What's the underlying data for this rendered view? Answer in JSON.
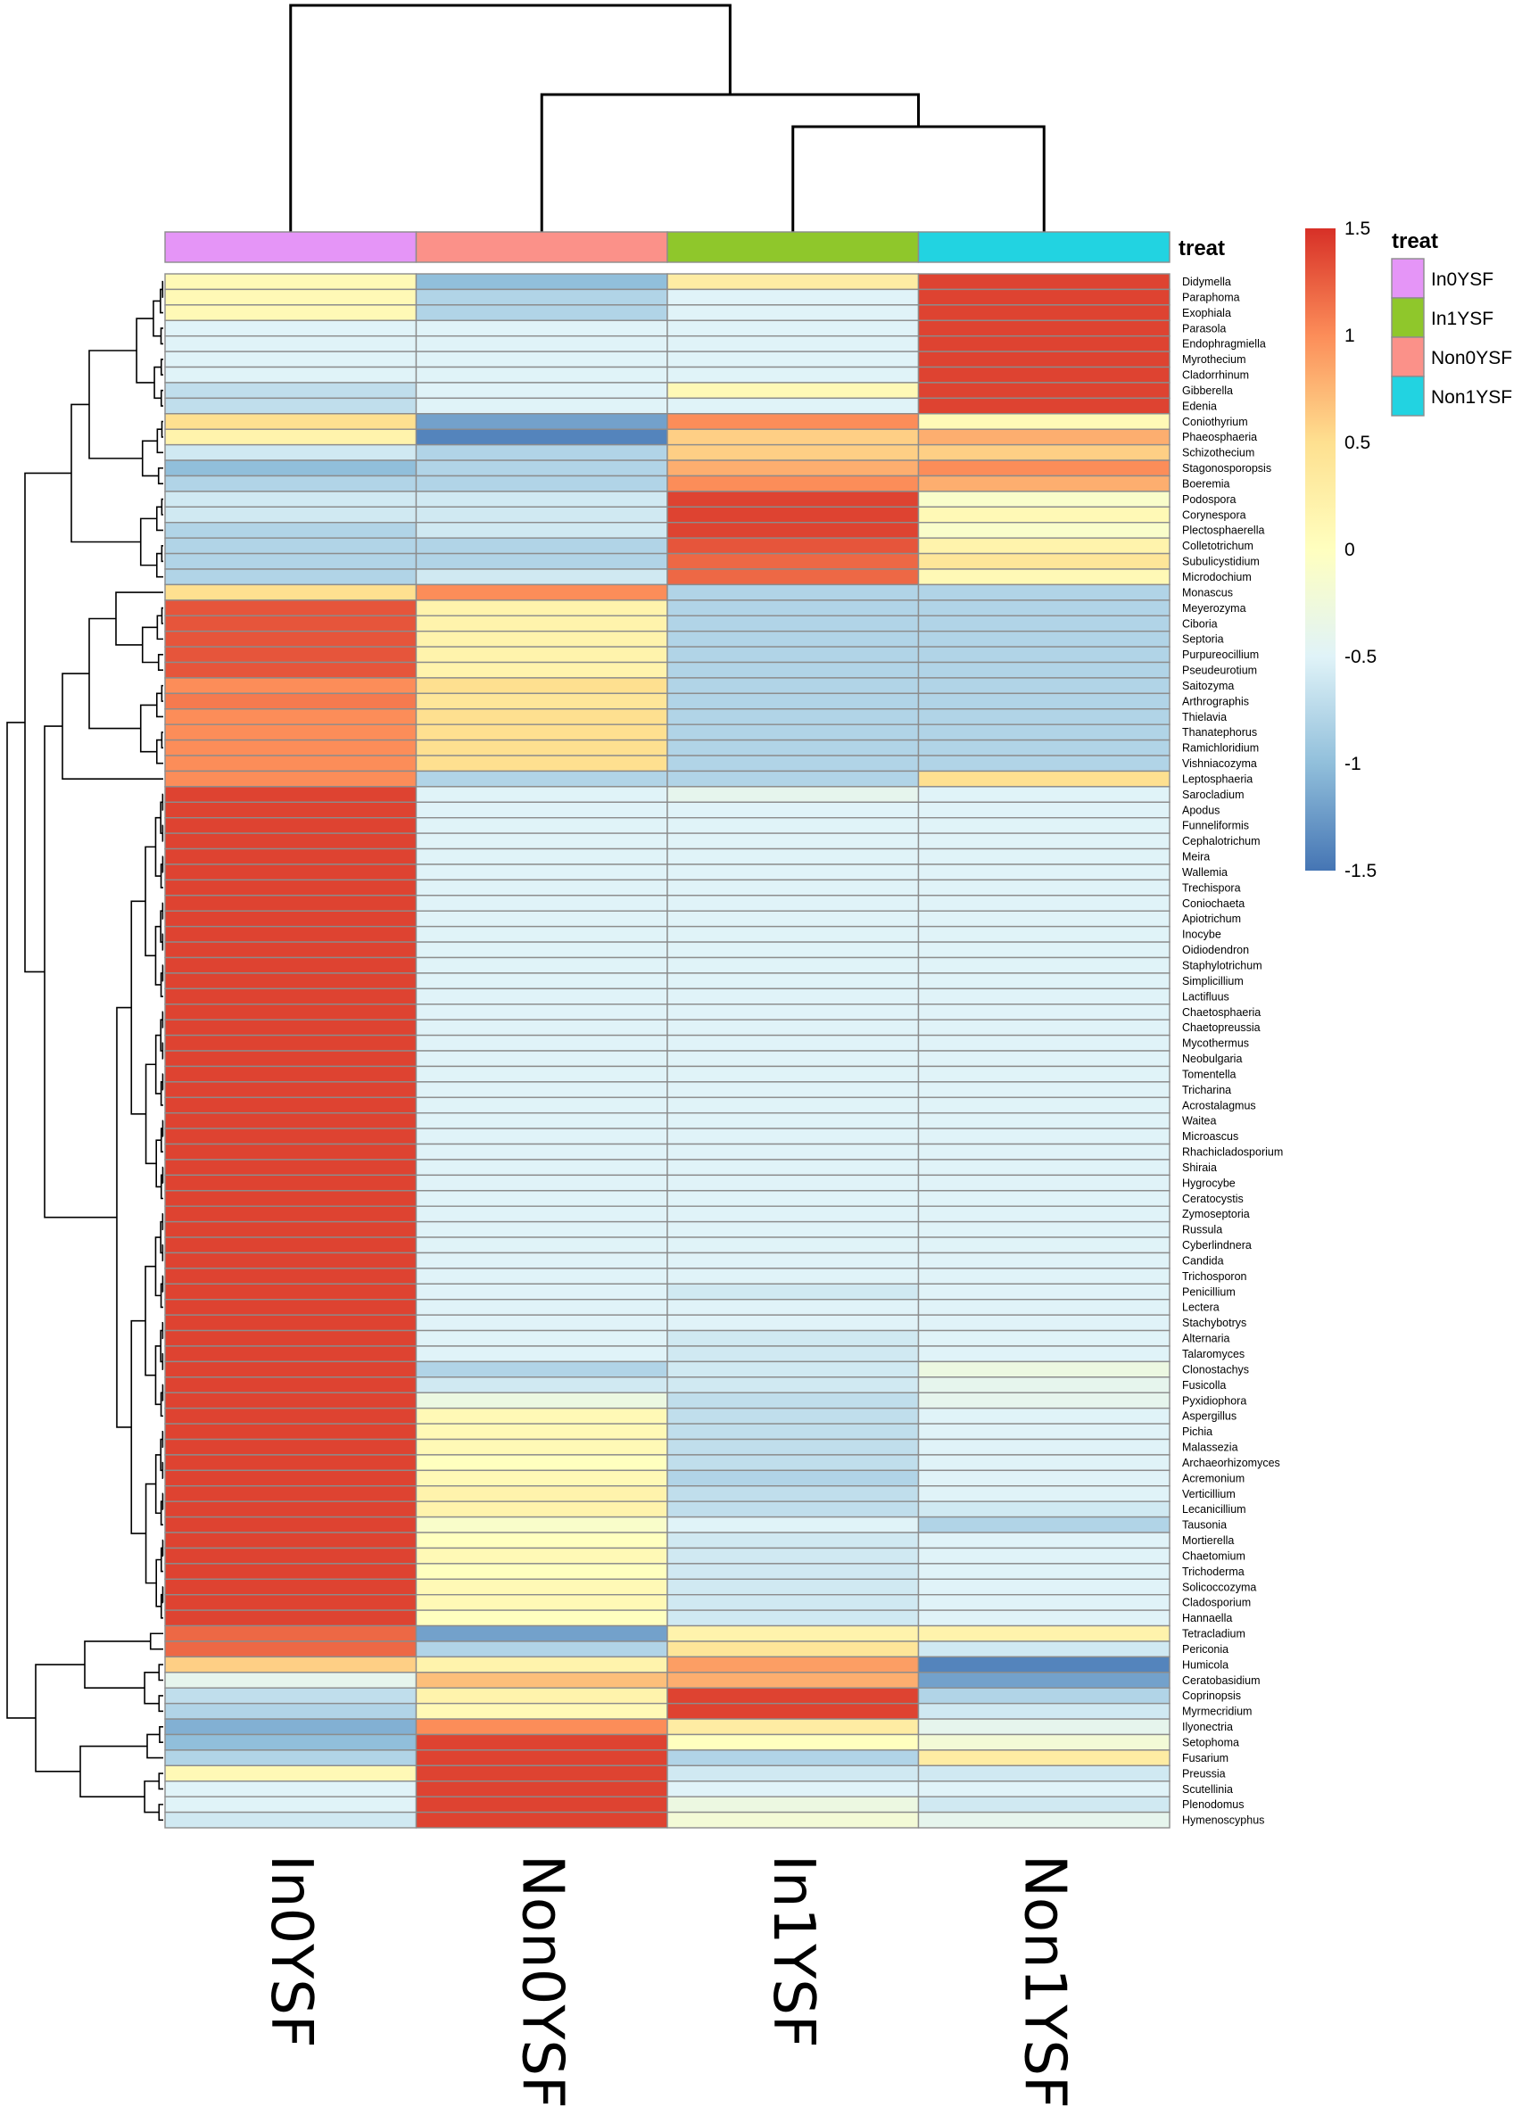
{
  "chart_data": {
    "type": "heatmap",
    "title": "",
    "columns": [
      "In0YSF",
      "Non0YSF",
      "In1YSF",
      "Non1YSF"
    ],
    "rows": [
      {
        "name": "Didymella",
        "values": [
          0.1,
          -1.0,
          0.3,
          1.4
        ]
      },
      {
        "name": "Paraphoma",
        "values": [
          0.1,
          -0.8,
          -0.5,
          1.4
        ]
      },
      {
        "name": "Exophiala",
        "values": [
          0.1,
          -0.8,
          -0.5,
          1.4
        ]
      },
      {
        "name": "Parasola",
        "values": [
          -0.5,
          -0.5,
          -0.5,
          1.4
        ]
      },
      {
        "name": "Endophragmiella",
        "values": [
          -0.5,
          -0.5,
          -0.5,
          1.4
        ]
      },
      {
        "name": "Myrothecium",
        "values": [
          -0.5,
          -0.5,
          -0.5,
          1.4
        ]
      },
      {
        "name": "Cladorrhinum",
        "values": [
          -0.5,
          -0.5,
          -0.5,
          1.4
        ]
      },
      {
        "name": "Gibberella",
        "values": [
          -0.7,
          -0.5,
          0.1,
          1.4
        ]
      },
      {
        "name": "Edenia",
        "values": [
          -0.7,
          -0.5,
          -0.5,
          1.4
        ]
      },
      {
        "name": "Coniothyrium",
        "values": [
          0.5,
          -1.2,
          1.0,
          0.1
        ]
      },
      {
        "name": "Phaeosphaeria",
        "values": [
          0.2,
          -1.4,
          0.6,
          0.8
        ]
      },
      {
        "name": "Schizothecium",
        "values": [
          -0.6,
          -0.8,
          0.6,
          0.6
        ]
      },
      {
        "name": "Stagonosporopsis",
        "values": [
          -1.0,
          -0.8,
          0.8,
          1.0
        ]
      },
      {
        "name": "Boeremia",
        "values": [
          -0.8,
          -0.8,
          1.0,
          0.8
        ]
      },
      {
        "name": "Podospora",
        "values": [
          -0.6,
          -0.6,
          1.4,
          -0.1
        ]
      },
      {
        "name": "Corynespora",
        "values": [
          -0.6,
          -0.6,
          1.4,
          0.1
        ]
      },
      {
        "name": "Plectosphaerella",
        "values": [
          -0.8,
          -0.6,
          1.4,
          -0.1
        ]
      },
      {
        "name": "Colletotrichum",
        "values": [
          -0.8,
          -0.8,
          1.3,
          0.2
        ]
      },
      {
        "name": "Subulicystidium",
        "values": [
          -0.8,
          -0.8,
          1.2,
          0.4
        ]
      },
      {
        "name": "Microdochium",
        "values": [
          -0.8,
          -0.6,
          1.2,
          0.1
        ]
      },
      {
        "name": "Monascus",
        "values": [
          0.5,
          1.0,
          -0.8,
          -0.8
        ]
      },
      {
        "name": "Meyerozyma",
        "values": [
          1.3,
          0.2,
          -0.8,
          -0.8
        ]
      },
      {
        "name": "Ciboria",
        "values": [
          1.3,
          0.2,
          -0.8,
          -0.8
        ]
      },
      {
        "name": "Septoria",
        "values": [
          1.3,
          0.2,
          -0.8,
          -0.8
        ]
      },
      {
        "name": "Purpureocillium",
        "values": [
          1.3,
          0.2,
          -0.8,
          -0.8
        ]
      },
      {
        "name": "Pseudeurotium",
        "values": [
          1.3,
          0.2,
          -0.8,
          -0.8
        ]
      },
      {
        "name": "Saitozyma",
        "values": [
          1.0,
          0.5,
          -0.8,
          -0.8
        ]
      },
      {
        "name": "Arthrographis",
        "values": [
          1.1,
          0.4,
          -0.8,
          -0.8
        ]
      },
      {
        "name": "Thielavia",
        "values": [
          1.0,
          0.5,
          -0.8,
          -0.8
        ]
      },
      {
        "name": "Thanatephorus",
        "values": [
          1.0,
          0.5,
          -0.8,
          -0.8
        ]
      },
      {
        "name": "Ramichloridium",
        "values": [
          1.0,
          0.5,
          -0.8,
          -0.8
        ]
      },
      {
        "name": "Vishniacozyma",
        "values": [
          1.0,
          0.5,
          -0.8,
          -0.8
        ]
      },
      {
        "name": "Leptosphaeria",
        "values": [
          1.0,
          -0.8,
          -0.8,
          0.5
        ]
      },
      {
        "name": "Sarocladium",
        "values": [
          1.4,
          -0.5,
          -0.4,
          -0.5
        ]
      },
      {
        "name": "Apodus",
        "values": [
          1.4,
          -0.5,
          -0.5,
          -0.5
        ]
      },
      {
        "name": "Funneliformis",
        "values": [
          1.4,
          -0.5,
          -0.5,
          -0.5
        ]
      },
      {
        "name": "Cephalotrichum",
        "values": [
          1.4,
          -0.5,
          -0.5,
          -0.5
        ]
      },
      {
        "name": "Meira",
        "values": [
          1.4,
          -0.5,
          -0.5,
          -0.5
        ]
      },
      {
        "name": "Wallemia",
        "values": [
          1.4,
          -0.5,
          -0.5,
          -0.5
        ]
      },
      {
        "name": "Trechispora",
        "values": [
          1.4,
          -0.5,
          -0.5,
          -0.5
        ]
      },
      {
        "name": "Coniochaeta",
        "values": [
          1.4,
          -0.5,
          -0.5,
          -0.5
        ]
      },
      {
        "name": "Apiotrichum",
        "values": [
          1.4,
          -0.5,
          -0.5,
          -0.5
        ]
      },
      {
        "name": "Inocybe",
        "values": [
          1.4,
          -0.5,
          -0.5,
          -0.5
        ]
      },
      {
        "name": "Oidiodendron",
        "values": [
          1.4,
          -0.5,
          -0.5,
          -0.5
        ]
      },
      {
        "name": "Staphylotrichum",
        "values": [
          1.4,
          -0.5,
          -0.5,
          -0.5
        ]
      },
      {
        "name": "Simplicillium",
        "values": [
          1.4,
          -0.5,
          -0.5,
          -0.5
        ]
      },
      {
        "name": "Lactifluus",
        "values": [
          1.4,
          -0.5,
          -0.5,
          -0.5
        ]
      },
      {
        "name": "Chaetosphaeria",
        "values": [
          1.4,
          -0.5,
          -0.5,
          -0.5
        ]
      },
      {
        "name": "Chaetopreussia",
        "values": [
          1.4,
          -0.5,
          -0.5,
          -0.5
        ]
      },
      {
        "name": "Mycothermus",
        "values": [
          1.4,
          -0.5,
          -0.5,
          -0.5
        ]
      },
      {
        "name": "Neobulgaria",
        "values": [
          1.4,
          -0.5,
          -0.5,
          -0.5
        ]
      },
      {
        "name": "Tomentella",
        "values": [
          1.4,
          -0.5,
          -0.5,
          -0.5
        ]
      },
      {
        "name": "Tricharina",
        "values": [
          1.4,
          -0.5,
          -0.5,
          -0.5
        ]
      },
      {
        "name": "Acrostalagmus",
        "values": [
          1.4,
          -0.5,
          -0.5,
          -0.5
        ]
      },
      {
        "name": "Waitea",
        "values": [
          1.4,
          -0.5,
          -0.5,
          -0.5
        ]
      },
      {
        "name": "Microascus",
        "values": [
          1.4,
          -0.5,
          -0.5,
          -0.5
        ]
      },
      {
        "name": "Rhachicladosporium",
        "values": [
          1.4,
          -0.5,
          -0.5,
          -0.5
        ]
      },
      {
        "name": "Shiraia",
        "values": [
          1.4,
          -0.5,
          -0.5,
          -0.5
        ]
      },
      {
        "name": "Hygrocybe",
        "values": [
          1.4,
          -0.5,
          -0.5,
          -0.5
        ]
      },
      {
        "name": "Ceratocystis",
        "values": [
          1.4,
          -0.5,
          -0.5,
          -0.5
        ]
      },
      {
        "name": "Zymoseptoria",
        "values": [
          1.4,
          -0.5,
          -0.5,
          -0.5
        ]
      },
      {
        "name": "Russula",
        "values": [
          1.4,
          -0.5,
          -0.5,
          -0.5
        ]
      },
      {
        "name": "Cyberlindnera",
        "values": [
          1.4,
          -0.5,
          -0.5,
          -0.5
        ]
      },
      {
        "name": "Candida",
        "values": [
          1.4,
          -0.5,
          -0.5,
          -0.5
        ]
      },
      {
        "name": "Trichosporon",
        "values": [
          1.4,
          -0.5,
          -0.5,
          -0.5
        ]
      },
      {
        "name": "Penicillium",
        "values": [
          1.4,
          -0.5,
          -0.6,
          -0.5
        ]
      },
      {
        "name": "Lectera",
        "values": [
          1.4,
          -0.5,
          -0.5,
          -0.5
        ]
      },
      {
        "name": "Stachybotrys",
        "values": [
          1.4,
          -0.5,
          -0.5,
          -0.5
        ]
      },
      {
        "name": "Alternaria",
        "values": [
          1.4,
          -0.5,
          -0.6,
          -0.5
        ]
      },
      {
        "name": "Talaromyces",
        "values": [
          1.4,
          -0.5,
          -0.6,
          -0.5
        ]
      },
      {
        "name": "Clonostachys",
        "values": [
          1.4,
          -0.8,
          -0.6,
          -0.3
        ]
      },
      {
        "name": "Fusicolla",
        "values": [
          1.4,
          -0.6,
          -0.6,
          -0.4
        ]
      },
      {
        "name": "Pyxidiophora",
        "values": [
          1.4,
          -0.3,
          -0.7,
          -0.4
        ]
      },
      {
        "name": "Aspergillus",
        "values": [
          1.4,
          0.1,
          -0.7,
          -0.5
        ]
      },
      {
        "name": "Pichia",
        "values": [
          1.4,
          0.1,
          -0.7,
          -0.5
        ]
      },
      {
        "name": "Malassezia",
        "values": [
          1.4,
          0.1,
          -0.7,
          -0.5
        ]
      },
      {
        "name": "Archaeorhizomyces",
        "values": [
          1.4,
          0.0,
          -0.7,
          -0.5
        ]
      },
      {
        "name": "Acremonium",
        "values": [
          1.4,
          0.1,
          -0.8,
          -0.5
        ]
      },
      {
        "name": "Verticillium",
        "values": [
          1.4,
          0.2,
          -0.7,
          -0.5
        ]
      },
      {
        "name": "Lecanicillium",
        "values": [
          1.4,
          0.2,
          -0.7,
          -0.6
        ]
      },
      {
        "name": "Tausonia",
        "values": [
          1.4,
          -0.1,
          -0.5,
          -0.8
        ]
      },
      {
        "name": "Mortierella",
        "values": [
          1.4,
          0.0,
          -0.6,
          -0.5
        ]
      },
      {
        "name": "Chaetomium",
        "values": [
          1.4,
          0.1,
          -0.6,
          -0.5
        ]
      },
      {
        "name": "Trichoderma",
        "values": [
          1.4,
          0.0,
          -0.6,
          -0.5
        ]
      },
      {
        "name": "Solicoccozyma",
        "values": [
          1.4,
          0.1,
          -0.6,
          -0.5
        ]
      },
      {
        "name": "Cladosporium",
        "values": [
          1.4,
          0.1,
          -0.6,
          -0.5
        ]
      },
      {
        "name": "Hannaella",
        "values": [
          1.4,
          0.0,
          -0.6,
          -0.5
        ]
      },
      {
        "name": "Tetracladium",
        "values": [
          1.2,
          -1.2,
          0.2,
          0.2
        ]
      },
      {
        "name": "Periconia",
        "values": [
          1.2,
          -0.8,
          0.4,
          -0.6
        ]
      },
      {
        "name": "Humicola",
        "values": [
          0.6,
          0.2,
          0.9,
          -1.4
        ]
      },
      {
        "name": "Ceratobasidium",
        "values": [
          -0.4,
          0.7,
          0.8,
          -1.2
        ]
      },
      {
        "name": "Coprinopsis",
        "values": [
          -0.7,
          0.2,
          1.4,
          -0.8
        ]
      },
      {
        "name": "Myrmecridium",
        "values": [
          -0.8,
          0.1,
          1.4,
          -0.6
        ]
      },
      {
        "name": "Ilyonectria",
        "values": [
          -1.1,
          1.0,
          0.3,
          -0.4
        ]
      },
      {
        "name": "Setophoma",
        "values": [
          -1.0,
          1.4,
          0.0,
          -0.2
        ]
      },
      {
        "name": "Fusarium",
        "values": [
          -0.8,
          1.4,
          -0.8,
          0.3
        ]
      },
      {
        "name": "Preussia",
        "values": [
          0.1,
          1.4,
          -0.6,
          -0.6
        ]
      },
      {
        "name": "Scutellinia",
        "values": [
          -0.5,
          1.4,
          -0.5,
          -0.5
        ]
      },
      {
        "name": "Plenodomus",
        "values": [
          -0.5,
          1.4,
          -0.3,
          -0.6
        ]
      },
      {
        "name": "Hymenoscyphus",
        "values": [
          -0.6,
          1.4,
          -0.2,
          -0.4
        ]
      }
    ],
    "annotation": {
      "title": "treat",
      "groups": [
        {
          "label": "In0YSF",
          "color": "#e595f7"
        },
        {
          "label": "In1YSF",
          "color": "#8fc72b"
        },
        {
          "label": "Non0YSF",
          "color": "#fb9189"
        },
        {
          "label": "Non1YSF",
          "color": "#22d3e1"
        }
      ],
      "column_groups": [
        "In0YSF",
        "Non0YSF",
        "In1YSF",
        "Non1YSF"
      ]
    },
    "color_scale": {
      "range": [
        -1.5,
        1.5
      ],
      "ticks": [
        {
          "value": 1.5,
          "label": "1.5"
        },
        {
          "value": 1.0,
          "label": "1"
        },
        {
          "value": 0.5,
          "label": "0.5"
        },
        {
          "value": 0.0,
          "label": "0"
        },
        {
          "value": -0.5,
          "label": "-0.5"
        },
        {
          "value": -1.0,
          "label": "-1"
        },
        {
          "value": -1.5,
          "label": "-1.5"
        }
      ],
      "stops": [
        "#4575b4",
        "#91bfdb",
        "#e0f3f8",
        "#ffffbf",
        "#fee090",
        "#fc8d59",
        "#d73027"
      ]
    }
  }
}
